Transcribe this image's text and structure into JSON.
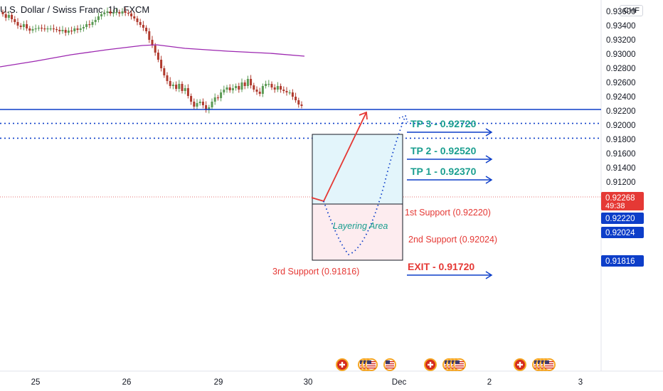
{
  "header": {
    "title": "U.S. Dollar / Swiss Franc, 1h, FXCM",
    "currency": "CHF"
  },
  "colors": {
    "up": "#26a69a",
    "up_body": "#5b9a54",
    "down": "#b03a2e",
    "ma": "#9c27b0",
    "blue": "#0d3ec9",
    "teal": "#1a9e8f",
    "red": "#e53935",
    "zone_top": "#e3f5fb",
    "zone_bottom": "#fdecef"
  },
  "chart_data": {
    "type": "candlestick",
    "symbol": "USDCHF",
    "timeframe": "1h",
    "ylim": [
      0.91,
      0.936
    ],
    "y_ticks": [
      "0.91200",
      "0.91400",
      "0.91600",
      "0.91800",
      "0.92000",
      "0.92200",
      "0.92400",
      "0.92600",
      "0.92800",
      "0.93000",
      "0.93200",
      "0.93400",
      "0.93600"
    ],
    "x_ticks": [
      "25",
      "26",
      "29",
      "30",
      "Dec",
      "2",
      "3"
    ],
    "price_tags": [
      {
        "value": "0.92268",
        "sub": "49:38",
        "color": "#e53935"
      },
      {
        "value": "0.92220",
        "color": "#0d3ec9"
      },
      {
        "value": "0.92024",
        "color": "#0d3ec9"
      },
      {
        "value": "0.91816",
        "color": "#0d3ec9"
      }
    ],
    "levels": [
      {
        "label": "1st Support (0.92220)",
        "price": 0.9222,
        "style": "solid"
      },
      {
        "label": "2nd Support (0.92024)",
        "price": 0.92024,
        "style": "dotted"
      },
      {
        "label": "3rd Support  (0.91816)",
        "price": 0.91816,
        "style": "dotted"
      }
    ],
    "targets": [
      {
        "label": "TP 3 - 0.92720",
        "price": 0.9272
      },
      {
        "label": "TP 2 - 0.92520",
        "price": 0.9252
      },
      {
        "label": "TP 1 - 0.92370",
        "price": 0.9237
      }
    ],
    "exit": {
      "label": "EXIT - 0.91720",
      "price": 0.9172
    },
    "zone_label": "Layering Area",
    "close": [
      0.9356,
      0.9351,
      0.9355,
      0.9349,
      0.9345,
      0.934,
      0.9338,
      0.9342,
      0.9336,
      0.9333,
      0.9335,
      0.9336,
      0.9337,
      0.9336,
      0.9335,
      0.9336,
      0.9336,
      0.9335,
      0.9334,
      0.9332,
      0.9334,
      0.933,
      0.9333,
      0.9332,
      0.9336,
      0.9334,
      0.9336,
      0.9338,
      0.9342,
      0.9341,
      0.9345,
      0.9348,
      0.9353,
      0.9356,
      0.9358,
      0.936,
      0.9357,
      0.9358,
      0.9359,
      0.9357,
      0.936,
      0.9358,
      0.9357,
      0.9353,
      0.935,
      0.9345,
      0.9341,
      0.9337,
      0.9332,
      0.932,
      0.9312,
      0.9302,
      0.9292,
      0.928,
      0.927,
      0.9262,
      0.9255,
      0.9257,
      0.9251,
      0.9258,
      0.9248,
      0.9252,
      0.9241,
      0.9233,
      0.9226,
      0.9231,
      0.9233,
      0.9228,
      0.9221,
      0.9225,
      0.9233,
      0.9239,
      0.9238,
      0.9246,
      0.925,
      0.9253,
      0.9249,
      0.9252,
      0.9255,
      0.925,
      0.926,
      0.9255,
      0.9265,
      0.9256,
      0.925,
      0.9247,
      0.9244,
      0.9255,
      0.9258,
      0.9258,
      0.9253,
      0.925,
      0.9255,
      0.925,
      0.9248,
      0.9246,
      0.9246,
      0.924,
      0.9235,
      0.9229,
      0.9227
    ],
    "ma": [
      [
        0,
        0.9282
      ],
      [
        50,
        0.929
      ],
      [
        100,
        0.9299
      ],
      [
        150,
        0.9306
      ],
      [
        200,
        0.9312
      ],
      [
        220,
        0.9313
      ],
      [
        260,
        0.9308
      ],
      [
        320,
        0.9304
      ],
      [
        380,
        0.9301
      ],
      [
        428,
        0.9297
      ]
    ]
  },
  "events": [
    {
      "x": 481,
      "icons": [
        "ch-flag-icon"
      ]
    },
    {
      "x": 512,
      "icons": [
        "us-flag-icon",
        "us-flag-icon",
        "us-flag-icon"
      ]
    },
    {
      "x": 548,
      "icons": [
        "us-flag-icon"
      ]
    },
    {
      "x": 605,
      "icons": [
        "ch-flag-icon"
      ]
    },
    {
      "x": 631,
      "icons": [
        "us-flag-icon",
        "us-flag-icon",
        "us-flag-icon",
        "us-flag-icon"
      ]
    },
    {
      "x": 731,
      "icons": [
        "ch-flag-icon"
      ]
    },
    {
      "x": 757,
      "icons": [
        "us-flag-icon",
        "us-flag-icon",
        "us-flag-icon",
        "us-flag-icon"
      ]
    }
  ]
}
